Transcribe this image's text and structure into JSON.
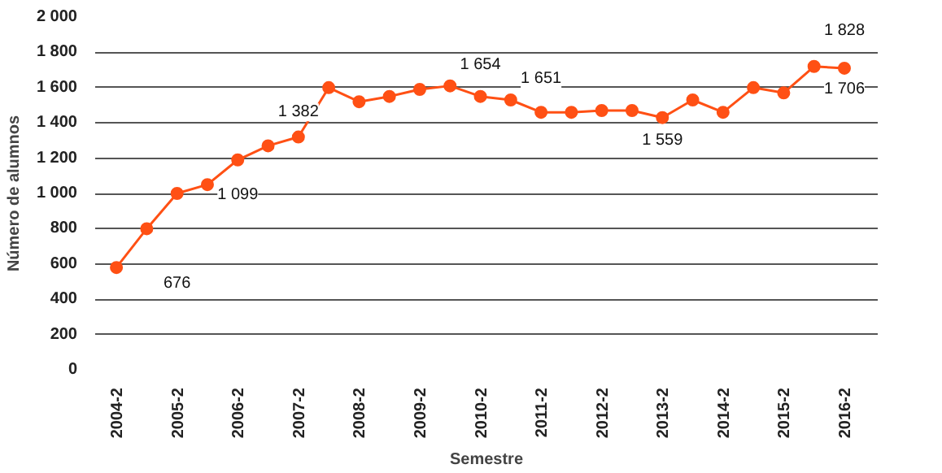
{
  "chart_data": {
    "type": "line",
    "xlabel": "Semestre",
    "ylabel": "Número de alumnos",
    "categories": [
      "2004-2",
      null,
      "2005-2",
      null,
      "2006-2",
      null,
      "2007-2",
      null,
      "2008-2",
      null,
      "2009-2",
      null,
      "2010-2",
      null,
      "2011-2",
      null,
      "2012-2",
      null,
      "2013-2",
      null,
      "2014-2",
      null,
      "2015-2",
      null,
      "2016-2"
    ],
    "series": [
      {
        "color": "#ff5014",
        "values": [
          580,
          800,
          1000,
          1050,
          1190,
          1270,
          1320,
          1600,
          1520,
          1550,
          1590,
          1610,
          1550,
          1530,
          1460,
          1460,
          1470,
          1470,
          1430,
          1530,
          1460,
          1600,
          1570,
          1720,
          1710
        ]
      }
    ],
    "ylim": [
      0,
      2000
    ],
    "yticks": [
      0,
      200,
      400,
      600,
      800,
      {
        "value": 1000,
        "label": "1 000"
      },
      {
        "value": 1200,
        "label": "1 200"
      },
      {
        "value": 1400,
        "label": "1 400"
      },
      {
        "value": 1600,
        "label": "1 600"
      },
      {
        "value": 1800,
        "label": "1 800"
      },
      {
        "value": 2000,
        "label": "2 000"
      }
    ],
    "grid": "y",
    "marker": "circle",
    "line_style": "solid",
    "annotations": [
      {
        "text": "676",
        "x": "2005-2",
        "y": 500
      },
      {
        "text": "1 099",
        "x": "2006-2",
        "y": 990
      },
      {
        "text": "1 382",
        "x": "2007-2",
        "y": 1460
      },
      {
        "text": "1 654",
        "x": "2010-2",
        "y": 1730
      },
      {
        "text": "1 651",
        "x": "2011-2",
        "y": 1650
      },
      {
        "text": "1 559",
        "x": "2013-2",
        "y": 1300
      },
      {
        "text": "1 828",
        "x": "2016-2",
        "y": 1920
      },
      {
        "text": "1 706",
        "x": "2016-2",
        "y": 1590
      }
    ]
  }
}
